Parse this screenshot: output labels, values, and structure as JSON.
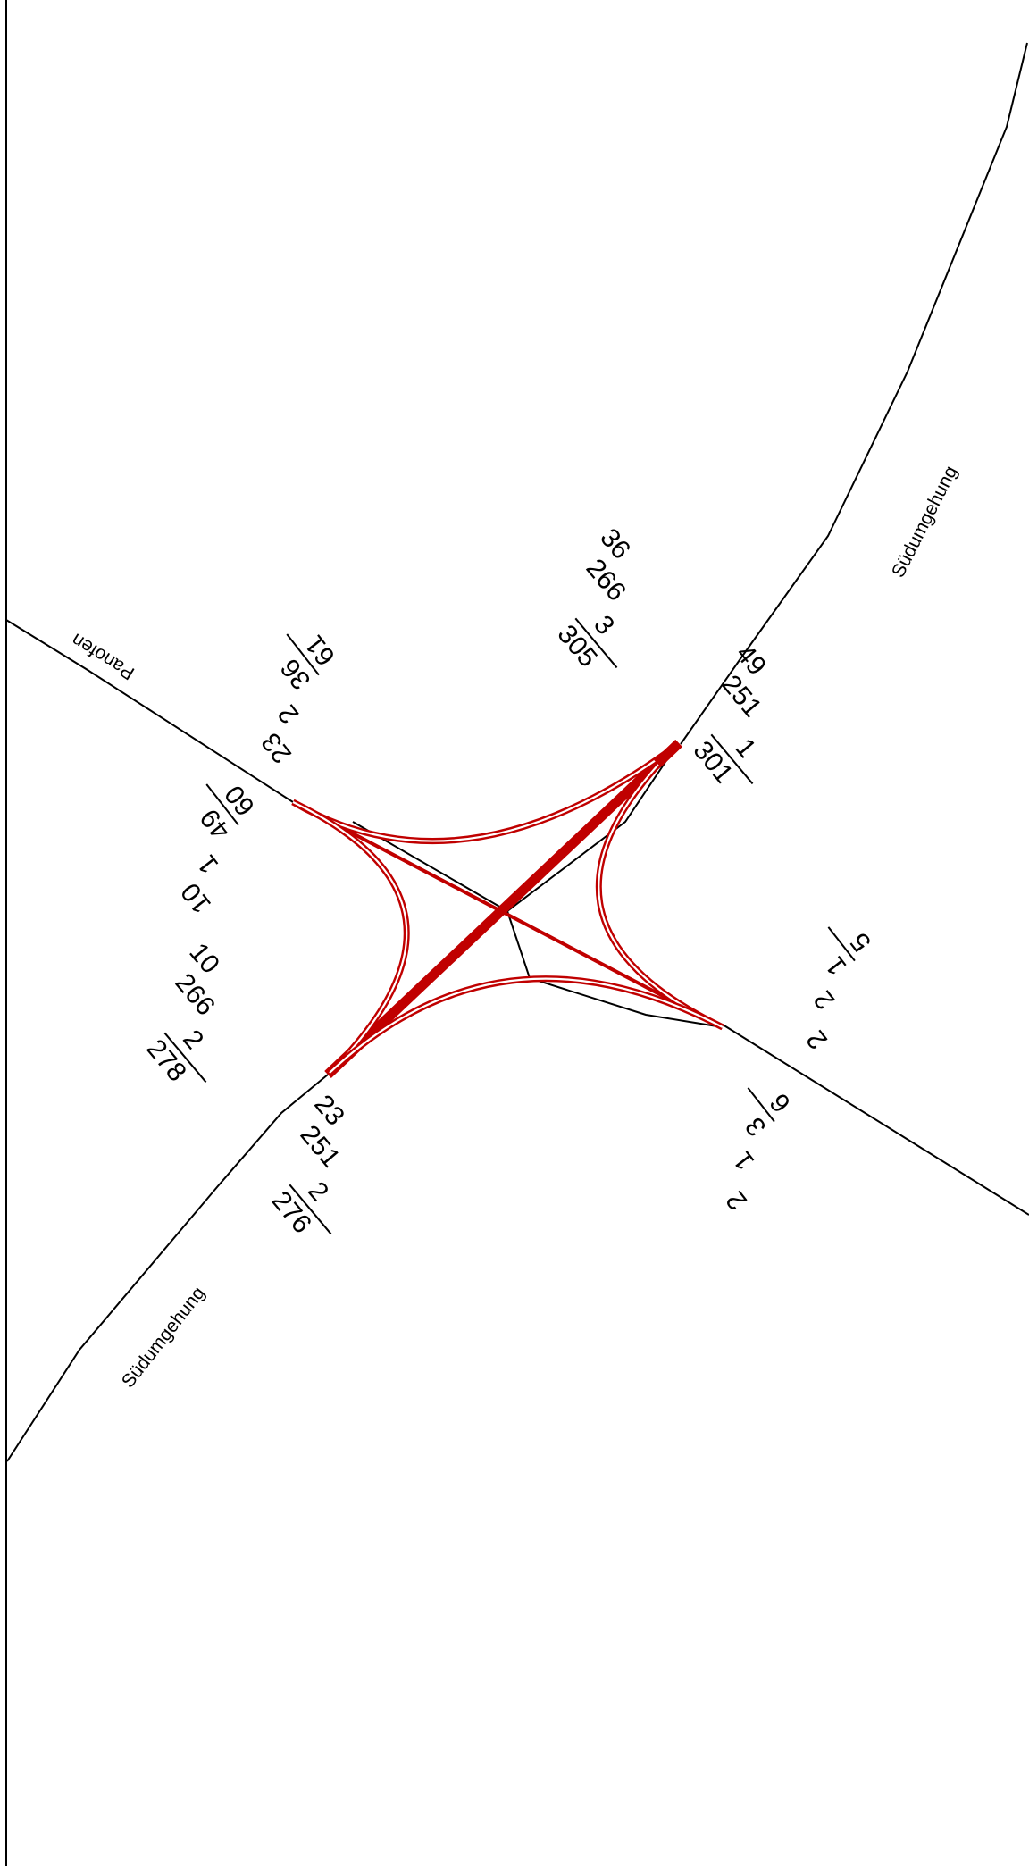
{
  "roads": {
    "sued_upper": "Südumgehung",
    "sued_lower": "Südumgehung",
    "panofen": "Panofen"
  },
  "arms": {
    "ne_in": {
      "l1": "36",
      "l2": "266",
      "l3": "3",
      "total": "305"
    },
    "ne_out": {
      "l1": "49",
      "l2": "251",
      "l3": "1",
      "total": "301"
    },
    "sw_in": {
      "l1": "10",
      "l2": "266",
      "l3": "2",
      "total": "278"
    },
    "sw_out": {
      "l1": "23",
      "l2": "251",
      "l3": "2",
      "total": "276"
    },
    "nw_a": {
      "l1": "23",
      "l2": "2",
      "l3": "36",
      "total": "61"
    },
    "nw_b": {
      "l1": "10",
      "l2": "1",
      "l3": "49",
      "total": "60"
    },
    "se_a": {
      "l1": "2",
      "l2": "2",
      "l3": "1",
      "total": "5"
    },
    "se_b": {
      "l1": "2",
      "l2": "1",
      "l3": "3",
      "total": "6"
    }
  },
  "colors": {
    "flow": "#c00000",
    "road": "#000000",
    "background": "#ffffff"
  }
}
